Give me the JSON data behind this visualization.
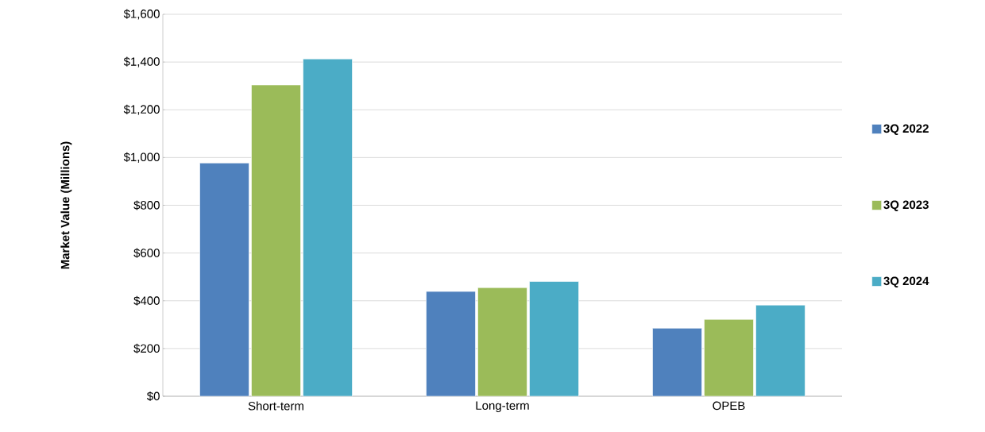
{
  "chart_data": {
    "type": "bar",
    "ylabel": "Market Value (Millions)",
    "categories": [
      "Short-term",
      "Long-term",
      "OPEB"
    ],
    "series": [
      {
        "name": "3Q 2022",
        "color": "#4f81bd",
        "values": [
          977,
          439,
          285
        ]
      },
      {
        "name": "3Q 2023",
        "color": "#9bbb59",
        "values": [
          1304,
          455,
          322
        ]
      },
      {
        "name": "3Q 2024",
        "color": "#4bacc6",
        "values": [
          1413,
          481,
          382
        ]
      }
    ],
    "ylim": [
      0,
      1600
    ],
    "yticks": [
      {
        "value": 0,
        "label": "$0"
      },
      {
        "value": 200,
        "label": "$200"
      },
      {
        "value": 400,
        "label": "$400"
      },
      {
        "value": 600,
        "label": "$600"
      },
      {
        "value": 800,
        "label": "$800"
      },
      {
        "value": 1000,
        "label": "$1,000"
      },
      {
        "value": 1200,
        "label": "$1,200"
      },
      {
        "value": 1400,
        "label": "$1,400"
      },
      {
        "value": 1600,
        "label": "$1,600"
      }
    ],
    "grid": "y",
    "legend": "right"
  }
}
